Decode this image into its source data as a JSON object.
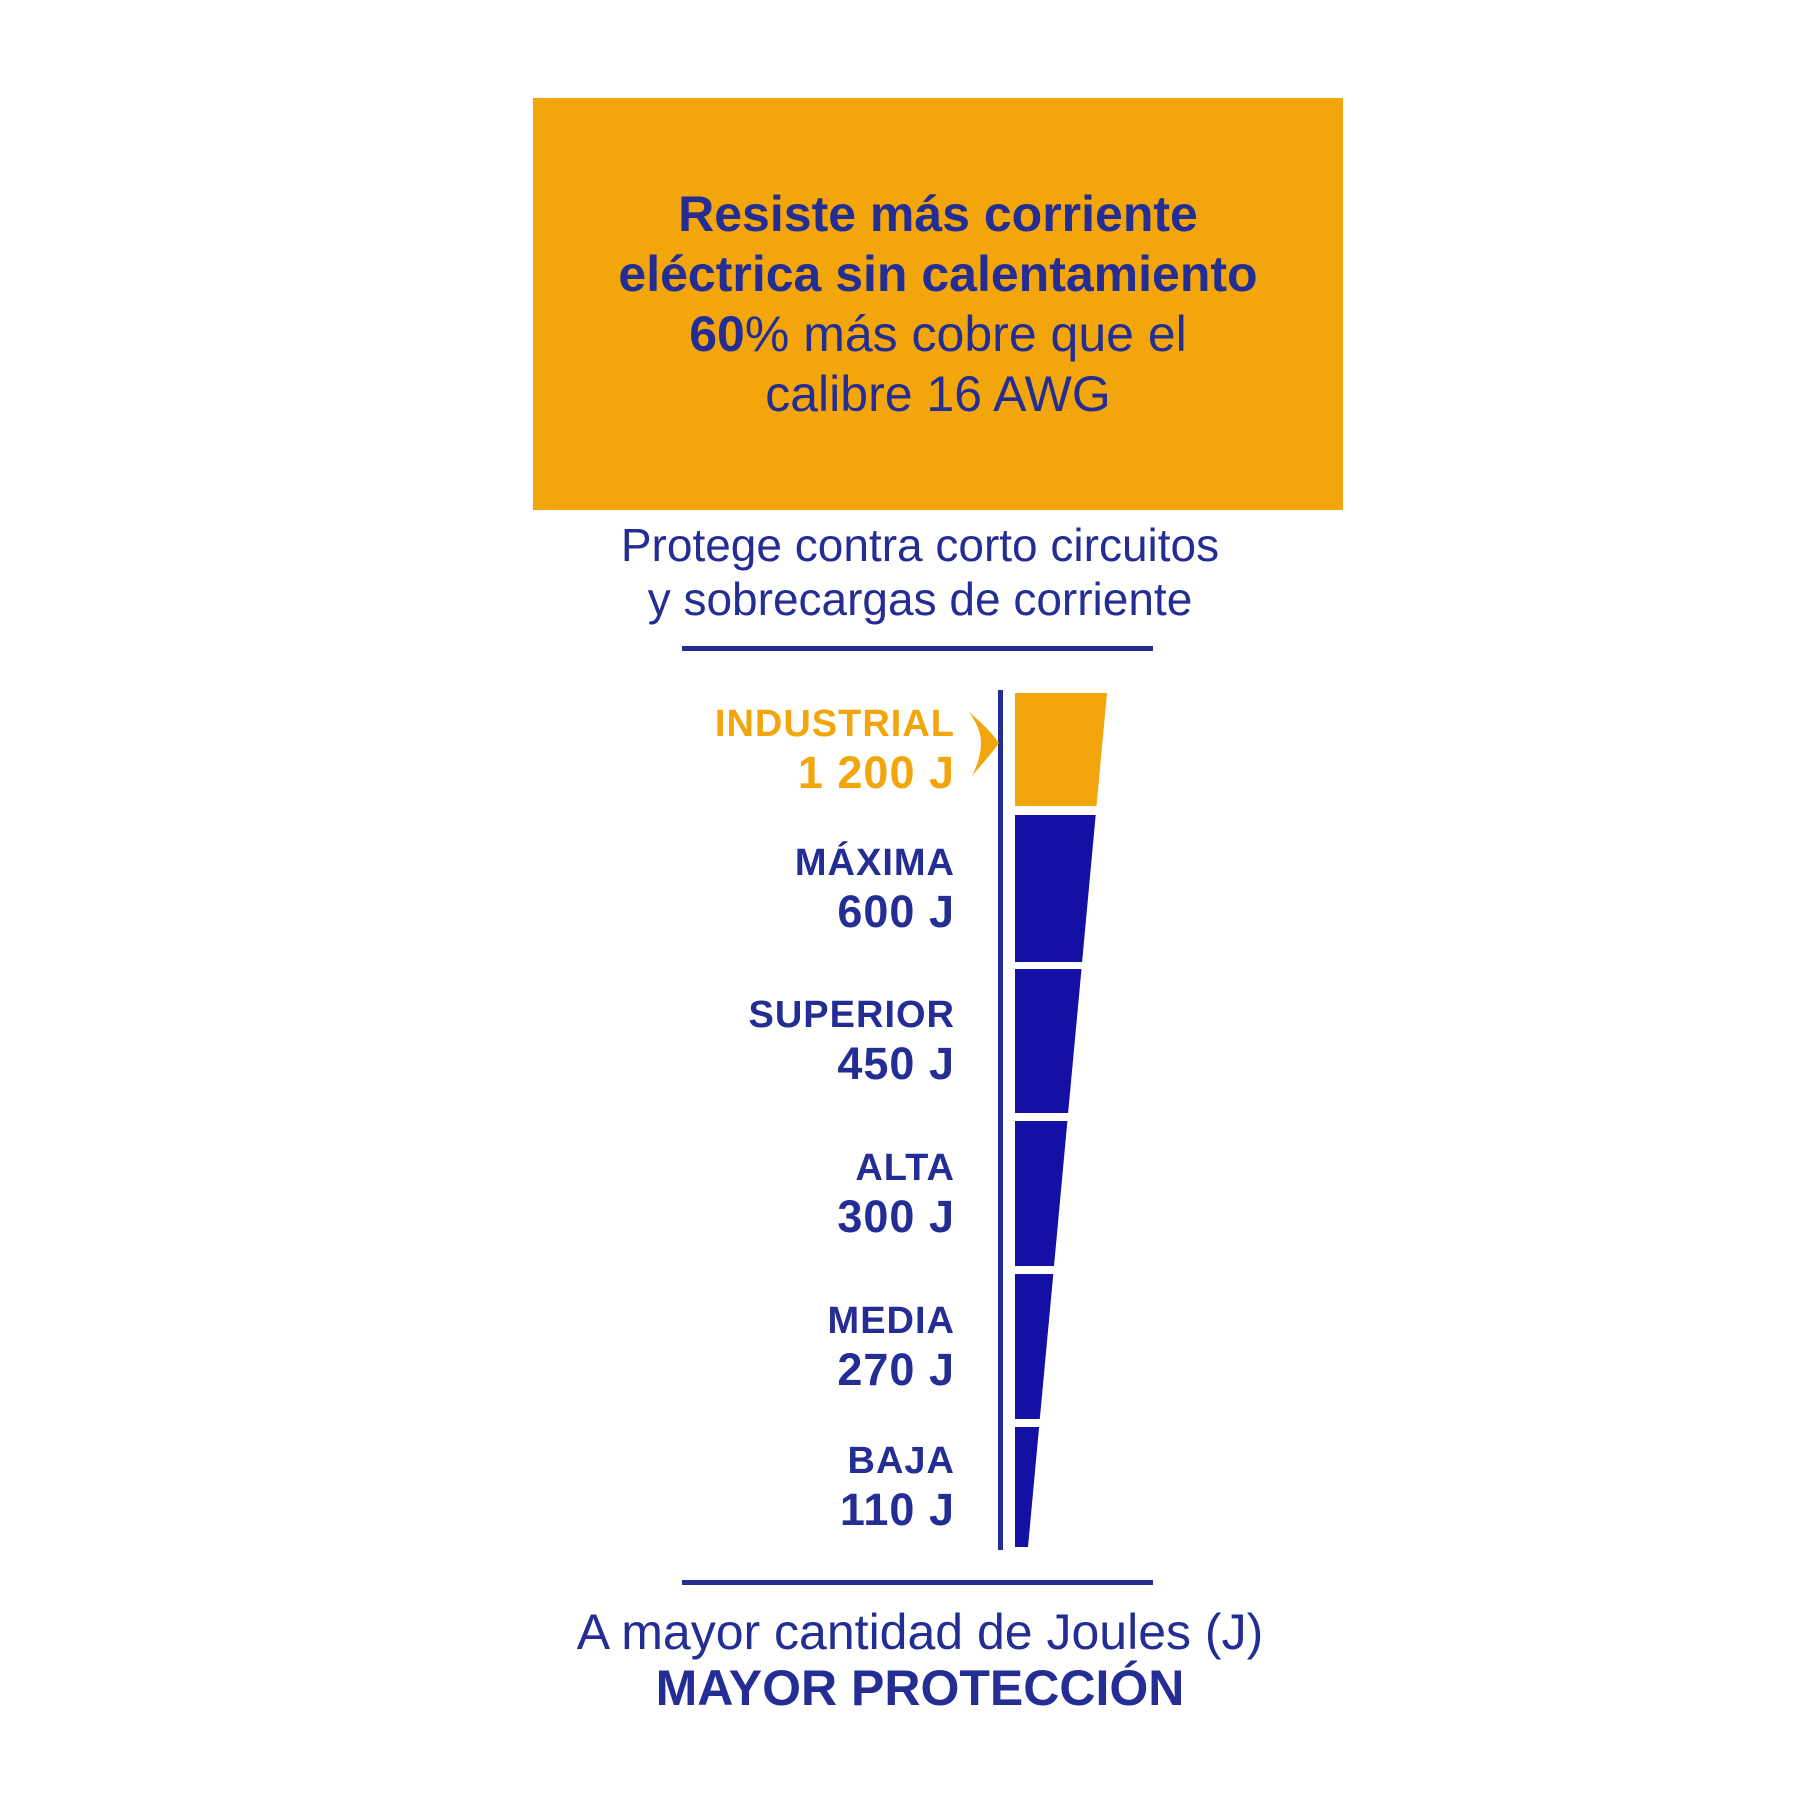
{
  "colors": {
    "orange": "#F2A60B",
    "navy": "#232D93",
    "segment_blue": "#1410A6",
    "background": "#FFFFFF"
  },
  "header_box": {
    "line1": "Resiste más corriente",
    "line2": "eléctrica sin calentamiento",
    "line3_bold": "60",
    "line3_rest": "% más cobre que el",
    "line4": "calibre 16 AWG"
  },
  "subtitle": {
    "line1": "Protege contra corto circuitos",
    "line2": "y sobrecargas de corriente"
  },
  "chart_data": {
    "type": "funnel",
    "title": "Protege contra corto circuitos y sobrecargas de corriente",
    "caption": "A mayor cantidad de Joules (J) MAYOR PROTECCIÓN",
    "unit": "J",
    "orientation": "vertical, widest at top, tapering down",
    "order": "descending protection top to bottom",
    "highlight_category": "INDUSTRIAL",
    "categories": [
      "INDUSTRIAL",
      "MÁXIMA",
      "SUPERIOR",
      "ALTA",
      "MEDIA",
      "BAJA"
    ],
    "values": [
      1200,
      600,
      450,
      300,
      270,
      110
    ],
    "segments": [
      {
        "name": "INDUSTRIAL",
        "value": 1200,
        "value_label": "1 200 J",
        "fill": "#F2A60B",
        "label_color": "#F2A60B"
      },
      {
        "name": "MÁXIMA",
        "value": 600,
        "value_label": "600 J",
        "fill": "#1410A6",
        "label_color": "#232D93"
      },
      {
        "name": "SUPERIOR",
        "value": 450,
        "value_label": "450 J",
        "fill": "#1410A6",
        "label_color": "#232D93"
      },
      {
        "name": "ALTA",
        "value": 300,
        "value_label": "300 J",
        "fill": "#1410A6",
        "label_color": "#232D93"
      },
      {
        "name": "MEDIA",
        "value": 270,
        "value_label": "270 J",
        "fill": "#1410A6",
        "label_color": "#232D93"
      },
      {
        "name": "BAJA",
        "value": 110,
        "value_label": "110 J",
        "fill": "#1410A6",
        "label_color": "#232D93"
      }
    ]
  },
  "footer": {
    "line1": "A mayor cantidad de Joules (J)",
    "line2": "MAYOR PROTECCIÓN"
  }
}
